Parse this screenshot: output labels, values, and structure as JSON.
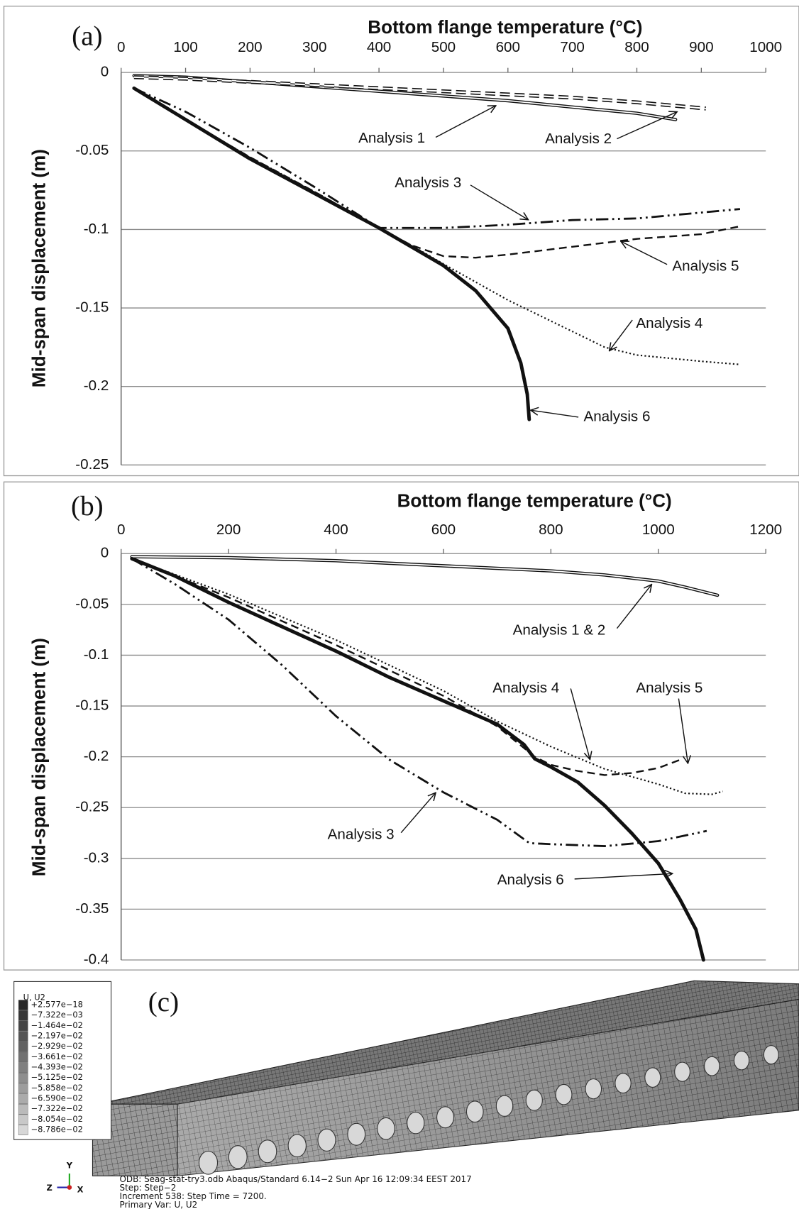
{
  "chart_data": [
    {
      "type": "line",
      "panel": "(a)",
      "title": "Bottom flange temperature (°C)",
      "y_label": "Mid-span displacement (m)",
      "xlim": [
        0,
        1000
      ],
      "xticks": [
        0,
        100,
        200,
        300,
        400,
        500,
        600,
        700,
        800,
        900,
        1000
      ],
      "ylim": [
        -0.25,
        0
      ],
      "yticks": [
        0,
        -0.05,
        -0.1,
        -0.15,
        -0.2,
        -0.25
      ],
      "grid": true,
      "series": [
        {
          "name": "Analysis 1",
          "style": "double",
          "color": "#111111",
          "x": [
            20,
            100,
            200,
            300,
            400,
            500,
            600,
            700,
            800,
            860
          ],
          "values": [
            -0.002,
            -0.003,
            -0.006,
            -0.009,
            -0.012,
            -0.015,
            -0.018,
            -0.022,
            -0.026,
            -0.03
          ]
        },
        {
          "name": "Analysis 2",
          "style": "double-dashed",
          "color": "#111111",
          "x": [
            20,
            100,
            200,
            300,
            400,
            500,
            600,
            700,
            800,
            907
          ],
          "values": [
            -0.003,
            -0.004,
            -0.006,
            -0.008,
            -0.01,
            -0.012,
            -0.014,
            -0.016,
            -0.019,
            -0.023
          ]
        },
        {
          "name": "Analysis 3",
          "style": "dash-dot-dot",
          "color": "#111111",
          "x": [
            20,
            100,
            200,
            300,
            400,
            500,
            600,
            700,
            800,
            960
          ],
          "values": [
            -0.01,
            -0.025,
            -0.048,
            -0.073,
            -0.099,
            -0.099,
            -0.097,
            -0.094,
            -0.093,
            -0.087
          ]
        },
        {
          "name": "Analysis 4",
          "style": "dotted",
          "color": "#111111",
          "x": [
            20,
            100,
            200,
            300,
            400,
            450,
            500,
            600,
            700,
            750,
            800,
            900,
            960
          ],
          "values": [
            -0.01,
            -0.03,
            -0.054,
            -0.076,
            -0.099,
            -0.11,
            -0.122,
            -0.145,
            -0.165,
            -0.175,
            -0.18,
            -0.184,
            -0.186
          ]
        },
        {
          "name": "Analysis 5",
          "style": "dashed",
          "color": "#111111",
          "x": [
            20,
            100,
            200,
            300,
            400,
            450,
            500,
            550,
            600,
            700,
            800,
            900,
            960
          ],
          "values": [
            -0.01,
            -0.03,
            -0.054,
            -0.076,
            -0.099,
            -0.11,
            -0.117,
            -0.118,
            -0.116,
            -0.111,
            -0.106,
            -0.103,
            -0.098
          ]
        },
        {
          "name": "Analysis 6",
          "style": "thick",
          "color": "#111111",
          "x": [
            20,
            100,
            200,
            300,
            400,
            500,
            550,
            600,
            620,
            630,
            633
          ],
          "values": [
            -0.01,
            -0.03,
            -0.055,
            -0.077,
            -0.099,
            -0.123,
            -0.139,
            -0.163,
            -0.185,
            -0.205,
            -0.221
          ]
        }
      ]
    },
    {
      "type": "line",
      "panel": "(b)",
      "title": "Bottom flange temperature (°C)",
      "y_label": "Mid-span displacement (m)",
      "xlim": [
        0,
        1200
      ],
      "xticks": [
        0,
        200,
        400,
        600,
        800,
        1000,
        1200
      ],
      "ylim": [
        -0.4,
        0
      ],
      "yticks": [
        0,
        -0.05,
        -0.1,
        -0.15,
        -0.2,
        -0.25,
        -0.3,
        -0.35,
        -0.4
      ],
      "grid": true,
      "series": [
        {
          "name": "Analysis 1 & 2",
          "style": "double",
          "color": "#111111",
          "x": [
            20,
            200,
            400,
            600,
            800,
            900,
            1000,
            1050,
            1110
          ],
          "values": [
            -0.003,
            -0.004,
            -0.007,
            -0.012,
            -0.017,
            -0.021,
            -0.027,
            -0.033,
            -0.041
          ]
        },
        {
          "name": "Analysis 3",
          "style": "dash-dot-dot",
          "color": "#111111",
          "x": [
            20,
            100,
            200,
            300,
            400,
            500,
            600,
            700,
            760,
            800,
            900,
            1000,
            1090
          ],
          "values": [
            -0.005,
            -0.03,
            -0.065,
            -0.11,
            -0.16,
            -0.203,
            -0.235,
            -0.262,
            -0.285,
            -0.286,
            -0.288,
            -0.283,
            -0.273
          ]
        },
        {
          "name": "Analysis 4",
          "style": "dotted",
          "color": "#111111",
          "x": [
            20,
            200,
            400,
            600,
            700,
            800,
            900,
            1000,
            1050,
            1100,
            1120
          ],
          "values": [
            -0.005,
            -0.04,
            -0.085,
            -0.135,
            -0.165,
            -0.19,
            -0.212,
            -0.227,
            -0.236,
            -0.237,
            -0.234
          ]
        },
        {
          "name": "Analysis 5",
          "style": "dashed",
          "color": "#111111",
          "x": [
            20,
            200,
            400,
            600,
            700,
            770,
            800,
            850,
            900,
            950,
            1000,
            1040
          ],
          "values": [
            -0.005,
            -0.043,
            -0.09,
            -0.14,
            -0.17,
            -0.2,
            -0.208,
            -0.214,
            -0.218,
            -0.216,
            -0.211,
            -0.203
          ]
        },
        {
          "name": "Analysis 6",
          "style": "thick",
          "color": "#111111",
          "x": [
            20,
            100,
            200,
            300,
            400,
            500,
            600,
            700,
            750,
            770,
            800,
            850,
            900,
            950,
            1000,
            1040,
            1070,
            1084
          ],
          "values": [
            -0.005,
            -0.022,
            -0.048,
            -0.072,
            -0.096,
            -0.122,
            -0.145,
            -0.168,
            -0.188,
            -0.202,
            -0.21,
            -0.225,
            -0.248,
            -0.275,
            -0.305,
            -0.34,
            -0.37,
            -0.4
          ]
        }
      ]
    }
  ],
  "fe_contour": {
    "panel": "(c)",
    "legend_title": "U, U2",
    "legend_values": [
      "+2.577e−18",
      "−7.322e−03",
      "−1.464e−02",
      "−2.197e−02",
      "−2.929e−02",
      "−3.661e−02",
      "−4.393e−02",
      "−5.125e−02",
      "−5.858e−02",
      "−6.590e−02",
      "−7.322e−02",
      "−8.054e−02",
      "−8.786e−02"
    ],
    "triad": [
      "Y",
      "Z",
      "X"
    ],
    "info": [
      "ODB: Seag-stat-try3.odb    Abaqus/Standard 6.14−2    Sun Apr 16 12:09:34 EEST 2017",
      "Step: Step−2",
      "Increment    538: Step Time =    7200.",
      "Primary Var: U, U2"
    ]
  }
}
